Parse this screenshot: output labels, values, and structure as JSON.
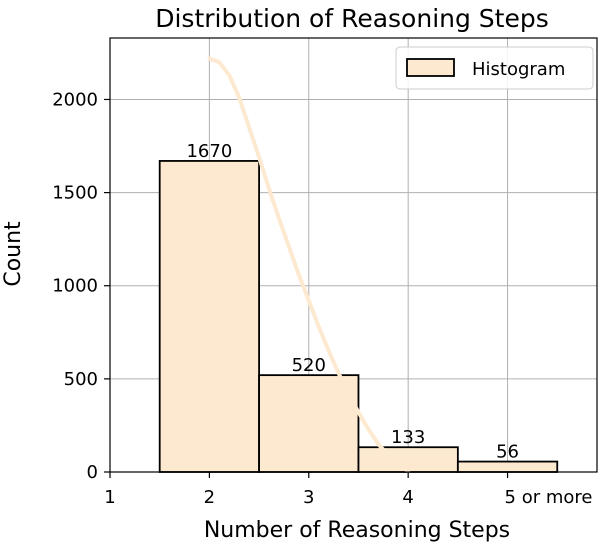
{
  "chart_data": {
    "type": "bar",
    "title": "Distribution of Reasoning Steps",
    "xlabel": "Number of Reasoning Steps",
    "ylabel": "Count",
    "x_ticks": [
      "1",
      "2",
      "3",
      "4",
      "5 or more"
    ],
    "x_tick_values": [
      1,
      2,
      3,
      4,
      5
    ],
    "xlim": [
      1,
      5.9
    ],
    "ylim": [
      0,
      2330
    ],
    "y_ticks": [
      0,
      500,
      1000,
      1500,
      2000
    ],
    "grid": true,
    "legend_position": "top-right",
    "legend": [
      "Histogram"
    ],
    "bar_color": "#fde9d0",
    "curve_color": "#fde9d0",
    "bars": [
      {
        "x_from": 1.5,
        "x_to": 2.5,
        "value": 1670,
        "label": "1670"
      },
      {
        "x_from": 2.5,
        "x_to": 3.5,
        "value": 520,
        "label": "520"
      },
      {
        "x_from": 3.5,
        "x_to": 4.5,
        "value": 133,
        "label": "133"
      },
      {
        "x_from": 4.5,
        "x_to": 5.5,
        "value": 56,
        "label": "56"
      }
    ],
    "curve": {
      "x": [
        2.0,
        2.1,
        2.2,
        2.3,
        2.4,
        2.5,
        2.6,
        2.7,
        2.8,
        2.9,
        3.0,
        3.1,
        3.2,
        3.3,
        3.4,
        3.5,
        3.6,
        3.7,
        3.8,
        3.9,
        4.0
      ],
      "y": [
        2220,
        2200,
        2130,
        2010,
        1850,
        1690,
        1520,
        1360,
        1210,
        1060,
        920,
        780,
        650,
        530,
        420,
        320,
        230,
        150,
        90,
        40,
        5
      ]
    }
  }
}
